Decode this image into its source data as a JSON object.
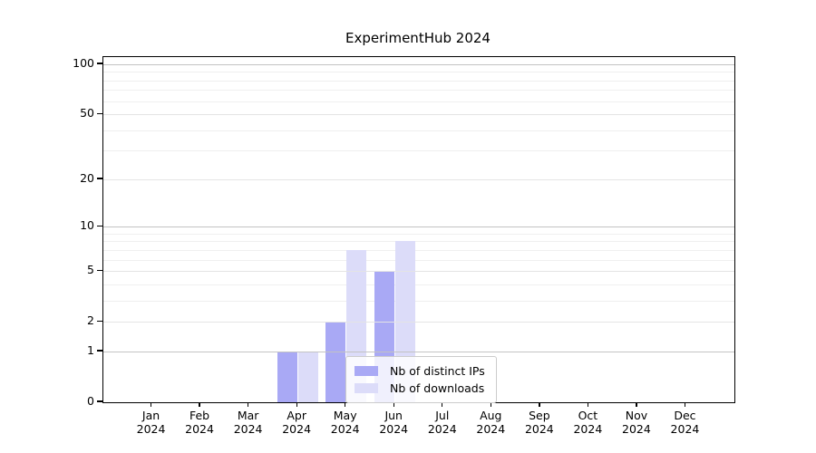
{
  "chart_data": {
    "type": "bar",
    "title": "ExperimentHub 2024",
    "months": [
      "Jan",
      "Feb",
      "Mar",
      "Apr",
      "May",
      "Jun",
      "Jul",
      "Aug",
      "Sep",
      "Oct",
      "Nov",
      "Dec"
    ],
    "year_label": "2024",
    "series": [
      {
        "name": "Nb of distinct IPs",
        "color": "#a9a9f5",
        "values": [
          0,
          0,
          0,
          1,
          2,
          5,
          0,
          0,
          0,
          0,
          0,
          0
        ]
      },
      {
        "name": "Nb of downloads",
        "color": "#dcdcf9",
        "values": [
          0,
          0,
          0,
          1,
          7,
          8,
          0,
          0,
          0,
          0,
          0,
          0
        ]
      }
    ],
    "y_axis": {
      "scale": "log10(1+value)",
      "ticks": [
        0,
        1,
        2,
        5,
        10,
        20,
        50,
        100
      ],
      "minor_gridlines": [
        3,
        4,
        6,
        7,
        8,
        9,
        30,
        40,
        60,
        70,
        80,
        90
      ],
      "decade_gridlines": [
        1,
        10,
        100
      ],
      "top_value": 110
    },
    "legend_position": "bottom-center",
    "grid": "on"
  },
  "colors": {
    "spine": "#000000",
    "grid_minor": "#efefef",
    "grid_major": "#e4e4e4",
    "grid_decade": "#c3c3c3",
    "background": "#ffffff"
  }
}
